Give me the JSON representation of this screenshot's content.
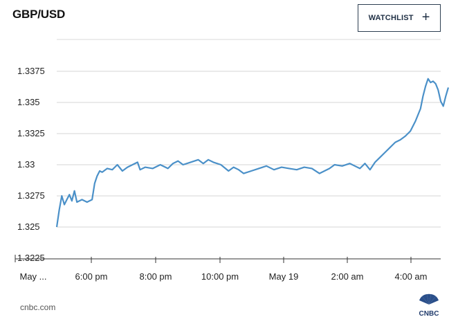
{
  "header": {
    "title": "GBP/USD",
    "watchlist_label": "WATCHLIST",
    "watchlist_icon": "plus-icon"
  },
  "chart_data": {
    "type": "line",
    "title": "GBP/USD",
    "xlabel": "",
    "ylabel": "",
    "y_ticks": [
      "1.3375",
      "1.335",
      "1.3325",
      "1.33",
      "1.3275",
      "1.325",
      "1.3225"
    ],
    "x_ticks": [
      "May ...",
      "6:00 pm",
      "8:00 pm",
      "10:00 pm",
      "May 19",
      "2:00 am",
      "4:00 am"
    ],
    "ylim": [
      1.3225,
      1.3375
    ],
    "xlim": [
      "4:20 pm",
      "5:00 am"
    ],
    "grid": true,
    "series": [
      {
        "color": "#4a90c8",
        "points": [
          [
            "4:20 pm",
            1.325
          ],
          [
            "4:25 pm",
            1.3264
          ],
          [
            "4:30 pm",
            1.3275
          ],
          [
            "4:35 pm",
            1.3268
          ],
          [
            "4:40 pm",
            1.3272
          ],
          [
            "4:45 pm",
            1.3276
          ],
          [
            "4:50 pm",
            1.3271
          ],
          [
            "4:55 pm",
            1.3279
          ],
          [
            "5:00 pm",
            1.327
          ],
          [
            "5:10 pm",
            1.3272
          ],
          [
            "5:20 pm",
            1.327
          ],
          [
            "5:30 pm",
            1.3272
          ],
          [
            "5:35 pm",
            1.3285
          ],
          [
            "5:40 pm",
            1.3291
          ],
          [
            "5:45 pm",
            1.3295
          ],
          [
            "5:50 pm",
            1.3294
          ],
          [
            "6:00 pm",
            1.3297
          ],
          [
            "6:10 pm",
            1.3296
          ],
          [
            "6:20 pm",
            1.33
          ],
          [
            "6:30 pm",
            1.3295
          ],
          [
            "6:40 pm",
            1.3298
          ],
          [
            "6:50 pm",
            1.33
          ],
          [
            "7:00 pm",
            1.3302
          ],
          [
            "7:05 pm",
            1.3296
          ],
          [
            "7:15 pm",
            1.3298
          ],
          [
            "7:30 pm",
            1.3297
          ],
          [
            "7:45 pm",
            1.33
          ],
          [
            "8:00 pm",
            1.3297
          ],
          [
            "8:10 pm",
            1.3301
          ],
          [
            "8:20 pm",
            1.3303
          ],
          [
            "8:30 pm",
            1.33
          ],
          [
            "8:45 pm",
            1.3302
          ],
          [
            "9:00 pm",
            1.3304
          ],
          [
            "9:10 pm",
            1.3301
          ],
          [
            "9:20 pm",
            1.3304
          ],
          [
            "9:30 pm",
            1.3302
          ],
          [
            "9:45 pm",
            1.33
          ],
          [
            "10:00 pm",
            1.3295
          ],
          [
            "10:10 pm",
            1.3298
          ],
          [
            "10:20 pm",
            1.3296
          ],
          [
            "10:30 pm",
            1.3293
          ],
          [
            "10:45 pm",
            1.3295
          ],
          [
            "11:00 pm",
            1.3297
          ],
          [
            "11:15 pm",
            1.3299
          ],
          [
            "11:30 pm",
            1.3296
          ],
          [
            "11:45 pm",
            1.3298
          ],
          [
            "12:00 am",
            1.3297
          ],
          [
            "12:15 am",
            1.3296
          ],
          [
            "12:30 am",
            1.3298
          ],
          [
            "12:45 am",
            1.3297
          ],
          [
            "1:00 am",
            1.3293
          ],
          [
            "1:10 am",
            1.3295
          ],
          [
            "1:20 am",
            1.3297
          ],
          [
            "1:30 am",
            1.33
          ],
          [
            "1:45 am",
            1.3299
          ],
          [
            "2:00 am",
            1.3301
          ],
          [
            "2:10 am",
            1.3299
          ],
          [
            "2:20 am",
            1.3297
          ],
          [
            "2:30 am",
            1.3301
          ],
          [
            "2:40 am",
            1.3296
          ],
          [
            "2:50 am",
            1.3302
          ],
          [
            "3:00 am",
            1.3306
          ],
          [
            "3:10 am",
            1.331
          ],
          [
            "3:20 am",
            1.3314
          ],
          [
            "3:30 am",
            1.3318
          ],
          [
            "3:40 am",
            1.332
          ],
          [
            "3:50 am",
            1.3323
          ],
          [
            "4:00 am",
            1.3327
          ],
          [
            "4:10 am",
            1.3335
          ],
          [
            "4:20 am",
            1.3345
          ],
          [
            "4:25 am",
            1.3355
          ],
          [
            "4:30 am",
            1.3363
          ],
          [
            "4:35 am",
            1.3369
          ],
          [
            "4:40 am",
            1.3366
          ],
          [
            "4:45 am",
            1.3367
          ],
          [
            "4:50 am",
            1.3365
          ],
          [
            "4:55 am",
            1.336
          ],
          [
            "5:00 am",
            1.3351
          ],
          [
            "5:05 am",
            1.3347
          ],
          [
            "5:10 am",
            1.3355
          ],
          [
            "5:15 am",
            1.3362
          ]
        ]
      }
    ]
  },
  "footer": {
    "source": "cnbc.com",
    "logo": "CNBC"
  }
}
